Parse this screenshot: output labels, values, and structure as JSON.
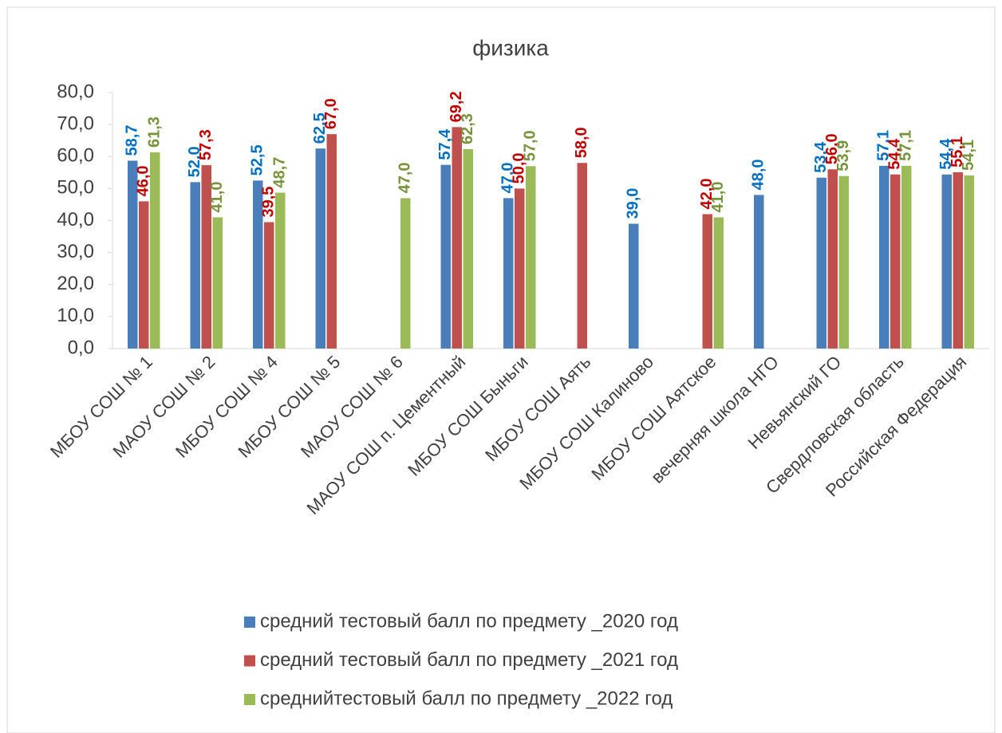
{
  "chart_data": {
    "type": "bar",
    "title": "физика",
    "categories": [
      "МБОУ СОШ № 1",
      "МАОУ СОШ № 2",
      "МБОУ СОШ № 4",
      "МБОУ СОШ № 5",
      "МАОУ СОШ № 6",
      "МАОУ СОШ п. Цементный",
      "МБОУ СОШ  Быньги",
      "МБОУ СОШ  Аять",
      "МБОУ СОШ Калиново",
      "МБОУ СОШ Аятское",
      "вечерняя школа НГО",
      "Невьянский ГО",
      "Свердловская область",
      "Российская Федерация"
    ],
    "series": [
      {
        "name": "средний тестовый балл по предмету _2020 год",
        "color": "#4a7ebb",
        "label_color": "#0070c0",
        "values": [
          58.7,
          52.0,
          52.5,
          62.5,
          null,
          57.4,
          47.0,
          null,
          39.0,
          null,
          48.0,
          53.4,
          57.1,
          54.4
        ],
        "value_labels": [
          "58,7",
          "52,0",
          "52,5",
          "62,5",
          null,
          "57,4",
          "47,0",
          null,
          "39,0",
          null,
          "48,0",
          "53,4",
          "57,1",
          "54,4"
        ]
      },
      {
        "name": "средний тестовый балл по предмету _2021 год",
        "color": "#c0504d",
        "label_color": "#c00000",
        "values": [
          46.0,
          57.3,
          39.5,
          67.0,
          null,
          69.2,
          50.0,
          58.0,
          null,
          42.0,
          null,
          56.0,
          54.4,
          55.1
        ],
        "value_labels": [
          "46,0",
          "57,3",
          "39,5",
          "67,0",
          null,
          "69,2",
          "50,0",
          "58,0",
          null,
          "42,0",
          null,
          "56,0",
          "54,4",
          "55,1"
        ]
      },
      {
        "name": "среднийтестовый  балл по предмету _2022 год",
        "color": "#9bbb59",
        "label_color": "#77933c",
        "values": [
          61.3,
          41.0,
          48.7,
          null,
          47.0,
          62.3,
          57.0,
          null,
          null,
          41.0,
          null,
          53.9,
          57.1,
          54.1
        ],
        "value_labels": [
          "61,3",
          "41,0",
          "48,7",
          null,
          "47,0",
          "62,3",
          "57,0",
          null,
          null,
          "41,0",
          null,
          "53,9",
          "57,1",
          "54,1"
        ]
      }
    ],
    "ylim": [
      0,
      80
    ],
    "yticks": [
      {
        "value": 0,
        "label": "0,0"
      },
      {
        "value": 10,
        "label": "10,0"
      },
      {
        "value": 20,
        "label": "20,0"
      },
      {
        "value": 30,
        "label": "30,0"
      },
      {
        "value": 40,
        "label": "40,0"
      },
      {
        "value": 50,
        "label": "50,0"
      },
      {
        "value": 60,
        "label": "60,0"
      },
      {
        "value": 70,
        "label": "70,0"
      },
      {
        "value": 80,
        "label": "80,0"
      }
    ],
    "legend": "bottom"
  }
}
